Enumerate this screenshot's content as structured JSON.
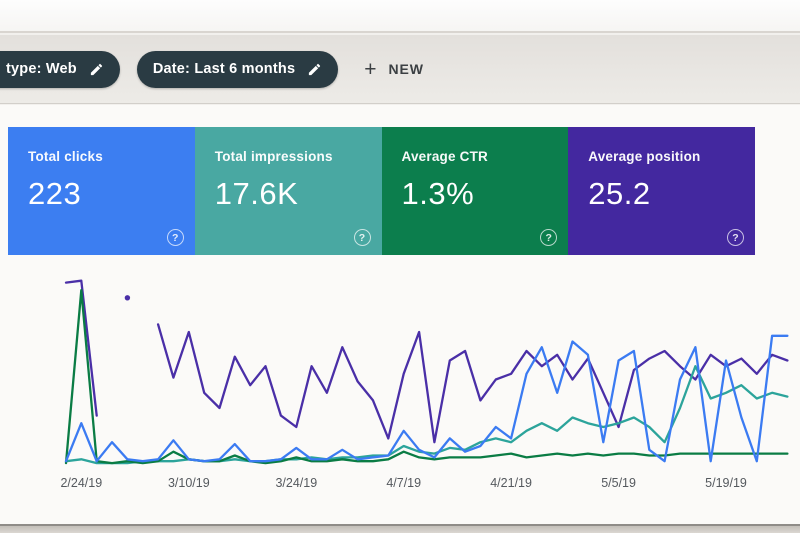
{
  "toolbar": {
    "chip_bg": "#2a3b43",
    "filter_chips": [
      {
        "label": "type: Web",
        "icon": "pencil-icon",
        "note": "left edge cut off by photo crop"
      },
      {
        "label": "Date: Last 6 months",
        "icon": "pencil-icon"
      }
    ],
    "plus_glyph": "+",
    "new_button_label": "NEW"
  },
  "cards": [
    {
      "title": "Total clicks",
      "value": "223",
      "color": "#3d7eef",
      "help_glyph": "?"
    },
    {
      "title": "Total impressions",
      "value": "17.6K",
      "color": "#4aa8a2",
      "help_glyph": "?"
    },
    {
      "title": "Average CTR",
      "value": "1.3%",
      "color": "#0e7d4d",
      "help_glyph": "?"
    },
    {
      "title": "Average position",
      "value": "25.2",
      "color": "#43289d",
      "help_glyph": "?"
    }
  ],
  "chart_data": {
    "type": "line",
    "title": "Search performance over time (no visible title in UI)",
    "xlabel": "",
    "ylabel": "",
    "grid": false,
    "legend": "none (line colors match the summary cards)",
    "x_tick_labels": [
      "2/24/19",
      "3/10/19",
      "3/24/19",
      "4/7/19",
      "4/21/19",
      "5/5/19",
      "5/19/19"
    ],
    "tick_indices": [
      1,
      8,
      15,
      22,
      29,
      36,
      43
    ],
    "x_note": "daily points from 2/24/19 to ~5/25/19 (Last 6 months filter, left portion cropped)",
    "y_note": "no y axis shown; values are relative heights 0-100 estimated from pixels",
    "series": [
      {
        "name": "Clicks",
        "color": "#3c7bf0",
        "values": [
          2,
          22,
          2,
          12,
          3,
          2,
          3,
          13,
          3,
          2,
          3,
          11,
          2,
          2,
          3,
          9,
          3,
          3,
          8,
          3,
          4,
          5,
          18,
          8,
          4,
          14,
          7,
          10,
          20,
          14,
          48,
          62,
          38,
          65,
          58,
          12,
          55,
          60,
          8,
          2,
          45,
          62,
          2,
          55,
          25,
          2,
          68,
          68
        ]
      },
      {
        "name": "Impressions",
        "color": "#2ea39b",
        "values": [
          2,
          3,
          1,
          1,
          1,
          2,
          2,
          2,
          3,
          2,
          2,
          3,
          2,
          2,
          3,
          3,
          4,
          3,
          4,
          4,
          5,
          5,
          10,
          7,
          6,
          9,
          8,
          12,
          14,
          12,
          18,
          22,
          18,
          25,
          22,
          20,
          22,
          25,
          20,
          12,
          30,
          52,
          35,
          38,
          42,
          35,
          38,
          36
        ]
      },
      {
        "name": "CTR",
        "color": "#0c7b45",
        "values": [
          1,
          92,
          2,
          1,
          2,
          1,
          2,
          7,
          3,
          2,
          2,
          5,
          2,
          1,
          2,
          4,
          2,
          2,
          3,
          2,
          2,
          3,
          7,
          4,
          3,
          4,
          4,
          4,
          5,
          6,
          4,
          5,
          6,
          5,
          6,
          5,
          6,
          6,
          5,
          5,
          6,
          6,
          6,
          6,
          6,
          6,
          6,
          6
        ]
      },
      {
        "name": "Average position",
        "color": "#4a2fa5",
        "values": [
          96,
          97,
          26,
          null,
          88,
          null,
          74,
          46,
          70,
          38,
          30,
          57,
          42,
          52,
          26,
          20,
          52,
          38,
          62,
          44,
          34,
          14,
          48,
          70,
          12,
          55,
          60,
          34,
          45,
          48,
          60,
          52,
          58,
          45,
          56,
          38,
          20,
          50,
          56,
          60,
          52,
          45,
          58,
          52,
          56,
          48,
          58,
          55
        ],
        "note": "has a data gap near the start with one isolated point"
      }
    ],
    "draw_order": [
      3,
      1,
      2,
      0
    ],
    "tick_color": "#55595e"
  }
}
